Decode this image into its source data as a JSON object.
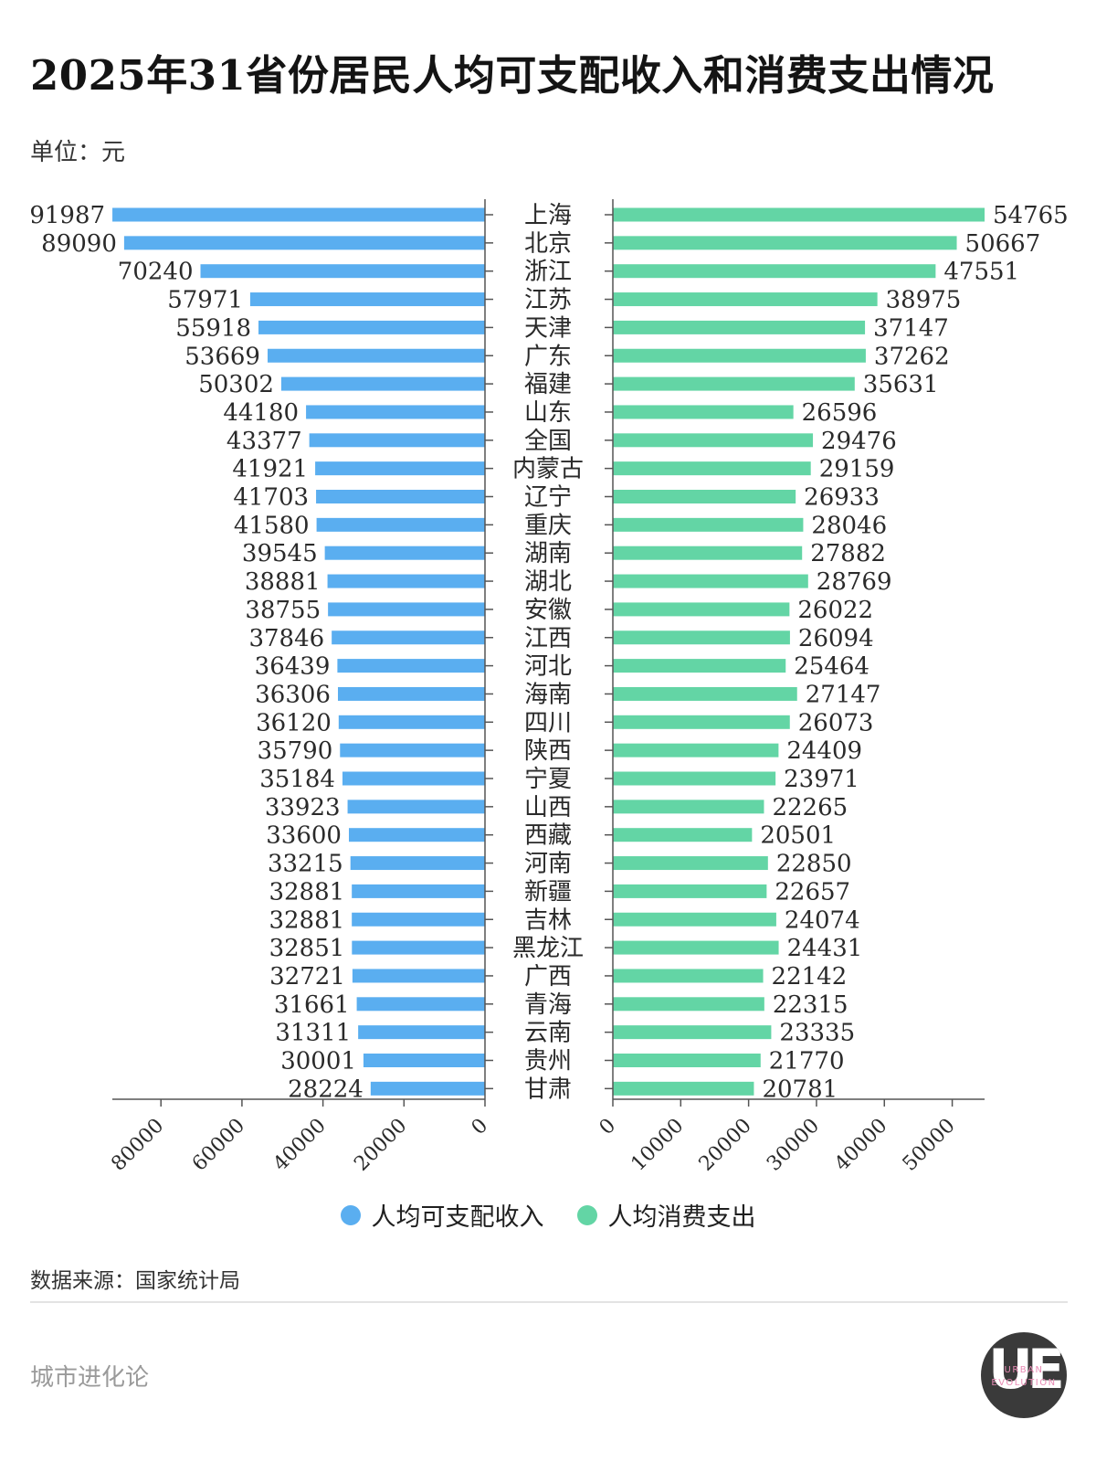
{
  "title": "2025年31省份居民人均可支配收入和消费支出情况",
  "unit_label": "单位：元",
  "source_label": "数据来源：国家统计局",
  "brand_label": "城市进化论",
  "logo": {
    "letters": "UE",
    "line1": "URBAN",
    "line2": "EVOLUTION"
  },
  "colors": {
    "income": "#5aaef0",
    "consumption": "#63d5a5",
    "axis": "#555555"
  },
  "chart_data": {
    "type": "bar",
    "orientation": "horizontal-butterfly",
    "categories": [
      "上海",
      "北京",
      "浙江",
      "江苏",
      "天津",
      "广东",
      "福建",
      "山东",
      "全国",
      "内蒙古",
      "辽宁",
      "重庆",
      "湖南",
      "湖北",
      "安徽",
      "江西",
      "河北",
      "海南",
      "四川",
      "陕西",
      "宁夏",
      "山西",
      "西藏",
      "河南",
      "新疆",
      "吉林",
      "黑龙江",
      "广西",
      "青海",
      "云南",
      "贵州",
      "甘肃"
    ],
    "series": [
      {
        "name": "人均可支配收入",
        "values": [
          91987,
          89090,
          70240,
          57971,
          55918,
          53669,
          50302,
          44180,
          43377,
          41921,
          41703,
          41580,
          39545,
          38881,
          38755,
          37846,
          36439,
          36306,
          36120,
          35790,
          35184,
          33923,
          33600,
          33215,
          32881,
          32881,
          32851,
          32721,
          31661,
          31311,
          30001,
          28224
        ],
        "xlim": [
          0,
          92000
        ],
        "ticks": [
          80000,
          60000,
          40000,
          20000,
          0
        ]
      },
      {
        "name": "人均消费支出",
        "values": [
          54765,
          50667,
          47551,
          38975,
          37147,
          37262,
          35631,
          26596,
          29476,
          29159,
          26933,
          28046,
          27882,
          28769,
          26022,
          26094,
          25464,
          27147,
          26073,
          24409,
          23971,
          22265,
          20501,
          22850,
          22657,
          24074,
          24431,
          22142,
          22315,
          23335,
          21770,
          20781
        ],
        "xlim": [
          0,
          54765
        ],
        "ticks": [
          0,
          10000,
          20000,
          30000,
          40000,
          50000
        ]
      }
    ],
    "legend": [
      "人均可支配收入",
      "人均消费支出"
    ],
    "legend_position": "bottom-center"
  }
}
